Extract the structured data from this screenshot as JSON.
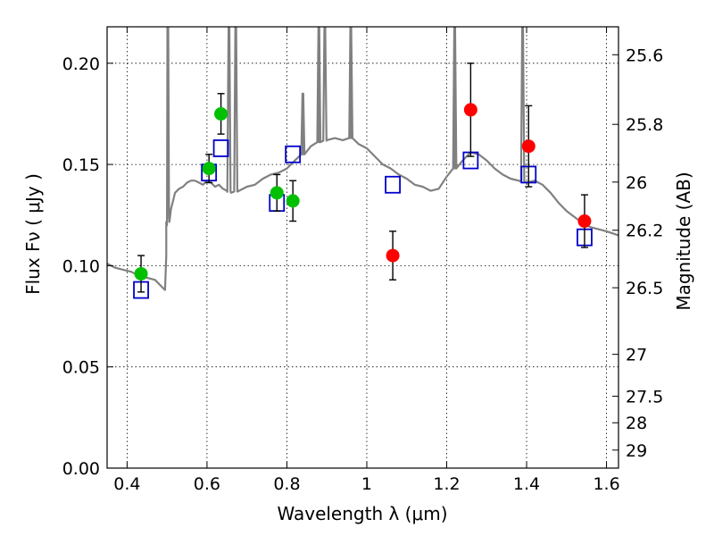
{
  "chart_data": {
    "type": "scatter",
    "xlabel": "Wavelength  λ (μm)",
    "ylabel": "Flux  Fν  ( μJy )",
    "ylabel_right": "Magnitude (AB)",
    "xlim": [
      0.35,
      1.63
    ],
    "ylim": [
      0.0,
      0.218
    ],
    "grid": true,
    "x_ticks": [
      {
        "value": 0.4,
        "label": "0.4"
      },
      {
        "value": 0.6,
        "label": "0.6"
      },
      {
        "value": 0.8,
        "label": "0.8"
      },
      {
        "value": 1.0,
        "label": "1"
      },
      {
        "value": 1.2,
        "label": "1.2"
      },
      {
        "value": 1.4,
        "label": "1.4"
      },
      {
        "value": 1.6,
        "label": "1.6"
      }
    ],
    "y_ticks": [
      {
        "value": 0.0,
        "label": "0.00"
      },
      {
        "value": 0.05,
        "label": "0.05"
      },
      {
        "value": 0.1,
        "label": "0.10"
      },
      {
        "value": 0.15,
        "label": "0.15"
      },
      {
        "value": 0.2,
        "label": "0.20"
      }
    ],
    "mag_ticks": [
      {
        "value": 0.2042,
        "label": "25.6"
      },
      {
        "value": 0.1698,
        "label": "25.8"
      },
      {
        "value": 0.1413,
        "label": "26"
      },
      {
        "value": 0.1175,
        "label": "26.2"
      },
      {
        "value": 0.0891,
        "label": "26.5"
      },
      {
        "value": 0.0562,
        "label": "27"
      },
      {
        "value": 0.0355,
        "label": "27.5"
      },
      {
        "value": 0.0224,
        "label": "28"
      },
      {
        "value": 0.0089,
        "label": "29"
      }
    ],
    "colors": {
      "model": "#808080",
      "optical": "#00c000",
      "infrared": "#ff0000",
      "model_box": "#0000cc",
      "errorbar": "#000000"
    },
    "series": [
      {
        "kind": "model_spectrum",
        "x": [
          0.35,
          0.37,
          0.39,
          0.41,
          0.43,
          0.45,
          0.47,
          0.485,
          0.495,
          0.498,
          0.5,
          0.505,
          0.51,
          0.515,
          0.52,
          0.53,
          0.54,
          0.55,
          0.56,
          0.57,
          0.58,
          0.59,
          0.6,
          0.61,
          0.62,
          0.63,
          0.64,
          0.65,
          0.66,
          0.68,
          0.7,
          0.72,
          0.74,
          0.76,
          0.78,
          0.8,
          0.82,
          0.84,
          0.86,
          0.88,
          0.9,
          0.92,
          0.94,
          0.96,
          0.98,
          1.0,
          1.02,
          1.04,
          1.06,
          1.08,
          1.1,
          1.12,
          1.14,
          1.16,
          1.18,
          1.2,
          1.22,
          1.24,
          1.26,
          1.28,
          1.3,
          1.32,
          1.34,
          1.36,
          1.38,
          1.4,
          1.42,
          1.44,
          1.46,
          1.48,
          1.5,
          1.52,
          1.54,
          1.56,
          1.58,
          1.6,
          1.63
        ],
        "y": [
          0.101,
          0.099,
          0.098,
          0.097,
          0.095,
          0.094,
          0.093,
          0.09,
          0.088,
          0.105,
          0.12,
          0.124,
          0.128,
          0.132,
          0.136,
          0.138,
          0.139,
          0.141,
          0.142,
          0.142,
          0.141,
          0.14,
          0.142,
          0.141,
          0.139,
          0.14,
          0.138,
          0.137,
          0.136,
          0.137,
          0.139,
          0.14,
          0.143,
          0.145,
          0.146,
          0.148,
          0.152,
          0.155,
          0.159,
          0.161,
          0.162,
          0.163,
          0.162,
          0.163,
          0.16,
          0.158,
          0.154,
          0.15,
          0.148,
          0.145,
          0.143,
          0.14,
          0.139,
          0.137,
          0.138,
          0.144,
          0.148,
          0.152,
          0.156,
          0.155,
          0.152,
          0.148,
          0.145,
          0.143,
          0.142,
          0.141,
          0.142,
          0.14,
          0.136,
          0.131,
          0.127,
          0.124,
          0.121,
          0.119,
          0.118,
          0.117,
          0.115
        ]
      },
      {
        "kind": "emission_lines",
        "lines": [
          {
            "x": 0.502,
            "peak": 0.218
          },
          {
            "x": 0.655,
            "peak": 0.218
          },
          {
            "x": 0.672,
            "peak": 0.218
          },
          {
            "x": 0.84,
            "peak": 0.185
          },
          {
            "x": 0.88,
            "peak": 0.218
          },
          {
            "x": 0.895,
            "peak": 0.218
          },
          {
            "x": 0.96,
            "peak": 0.218
          },
          {
            "x": 1.22,
            "peak": 0.218
          },
          {
            "x": 1.39,
            "peak": 0.218
          }
        ]
      },
      {
        "kind": "optical_photometry",
        "points": [
          {
            "x": 0.435,
            "y": 0.096,
            "err": 0.009
          },
          {
            "x": 0.605,
            "y": 0.148,
            "err": 0.007
          },
          {
            "x": 0.635,
            "y": 0.175,
            "err": 0.01
          },
          {
            "x": 0.775,
            "y": 0.136,
            "err": 0.009
          },
          {
            "x": 0.815,
            "y": 0.132,
            "err": 0.01
          }
        ]
      },
      {
        "kind": "infrared_photometry",
        "points": [
          {
            "x": 1.065,
            "y": 0.105,
            "err": 0.012
          },
          {
            "x": 1.26,
            "y": 0.177,
            "err": 0.023
          },
          {
            "x": 1.405,
            "y": 0.159,
            "err": 0.02
          },
          {
            "x": 1.545,
            "y": 0.122,
            "err": 0.013
          }
        ]
      },
      {
        "kind": "model_photometry",
        "points": [
          {
            "x": 0.435,
            "y": 0.088
          },
          {
            "x": 0.605,
            "y": 0.146
          },
          {
            "x": 0.635,
            "y": 0.158
          },
          {
            "x": 0.775,
            "y": 0.131
          },
          {
            "x": 0.815,
            "y": 0.155
          },
          {
            "x": 1.065,
            "y": 0.14
          },
          {
            "x": 1.26,
            "y": 0.152
          },
          {
            "x": 1.405,
            "y": 0.145
          },
          {
            "x": 1.545,
            "y": 0.114
          }
        ]
      }
    ]
  }
}
